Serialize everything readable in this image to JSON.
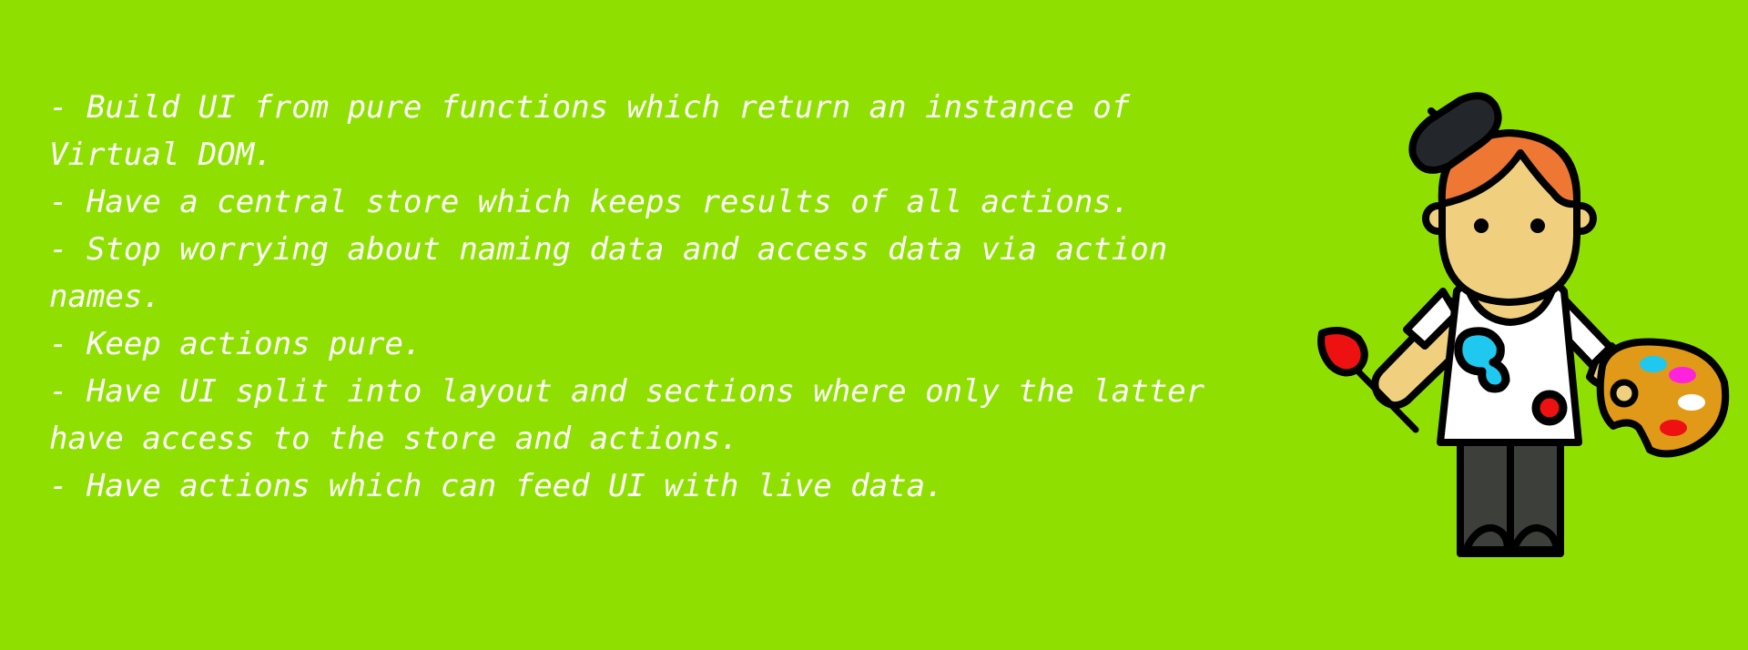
{
  "principles": [
    "- Build UI from pure functions which return an instance of Virtual DOM.",
    "- Have a central store which keeps results of all actions.",
    "- Stop worrying about naming data and access data via action names.",
    "- Keep actions pure.",
    "- Have UI split into layout and sections where only the latter have access to the store and actions.",
    "- Have actions which can feed UI with live data."
  ],
  "colors": {
    "background": "#8fe000",
    "text": "#ffffff",
    "beret": "#23272b",
    "hair": "#ee7733",
    "skin": "#f0d07e",
    "trousers": "#3d3f3a",
    "palette": "#e09a18",
    "paint_cyan": "#1ec8ee",
    "paint_magenta": "#ff22dd",
    "paint_red": "#ee1111",
    "outline": "#000000"
  },
  "illustration": {
    "subject": "painter-artist",
    "icons": [
      "beret-icon",
      "paintbrush-icon",
      "paint-palette-icon"
    ]
  }
}
